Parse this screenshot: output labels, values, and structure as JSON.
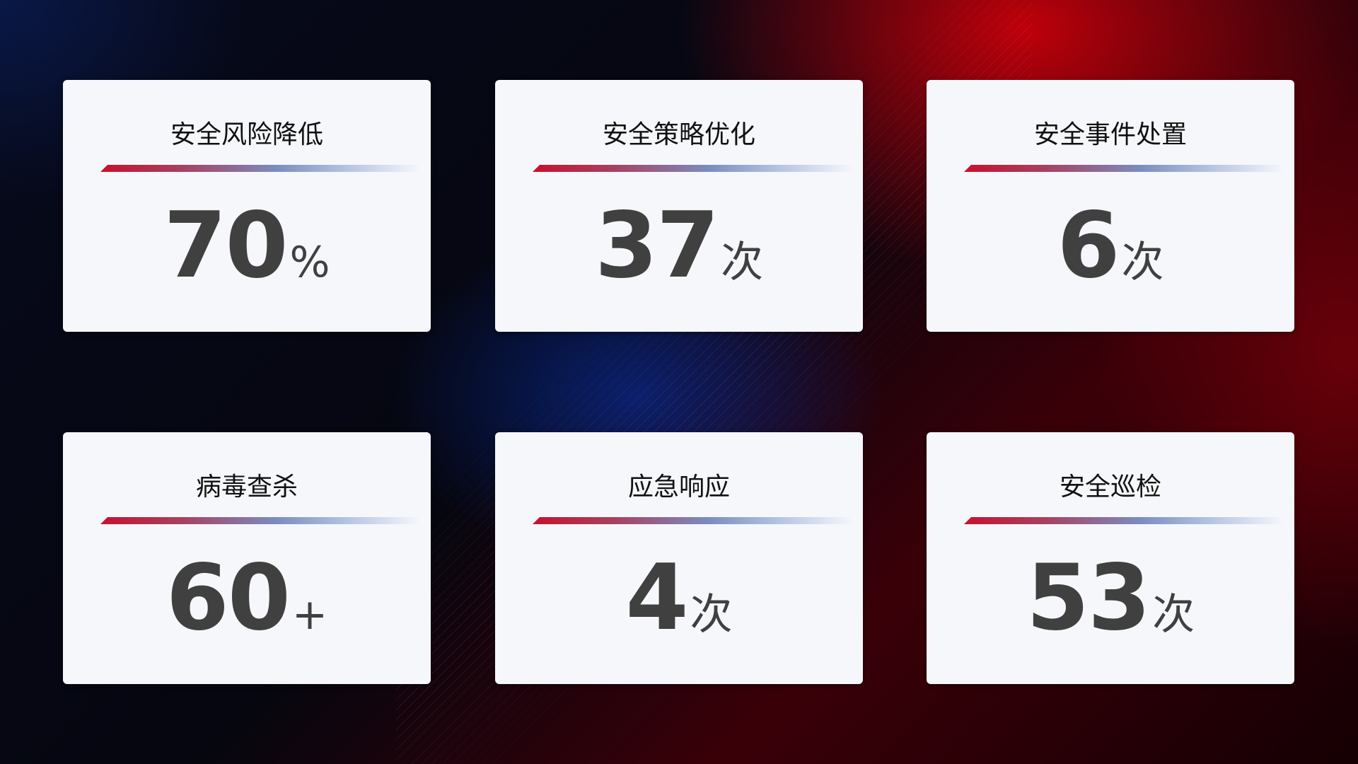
{
  "cards": [
    {
      "title": "安全风险降低",
      "value": "70",
      "unit": "%"
    },
    {
      "title": "安全策略优化",
      "value": "37",
      "unit": "次"
    },
    {
      "title": "安全事件处置",
      "value": "6",
      "unit": "次"
    },
    {
      "title": "病毒查杀",
      "value": "60",
      "unit": "+"
    },
    {
      "title": "应急响应",
      "value": "4",
      "unit": "次"
    },
    {
      "title": "安全巡检",
      "value": "53",
      "unit": "次"
    }
  ],
  "colors": {
    "accent_red": "#c8102e",
    "accent_blue": "#7a8cc0",
    "card_bg": "#f5f7fb",
    "value_text": "#404040"
  }
}
